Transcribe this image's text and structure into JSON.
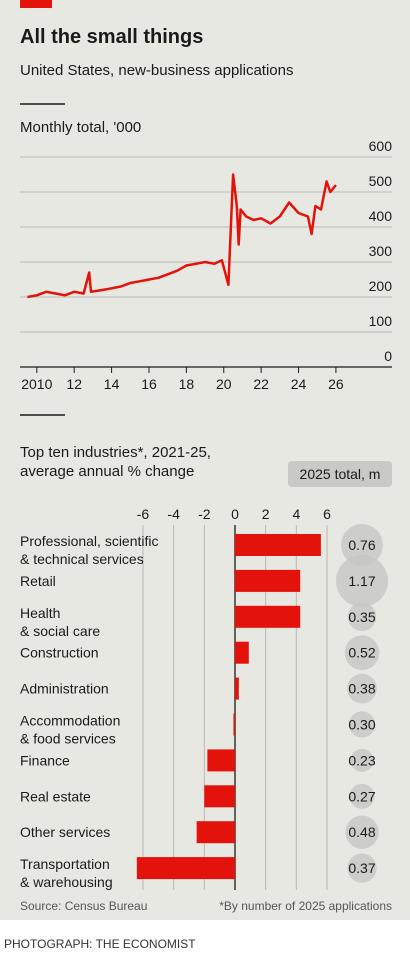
{
  "title": "All the small things",
  "subtitle": "United States, new-business applications",
  "chart_data": [
    {
      "type": "line",
      "title": "Monthly total, '000",
      "color": "#e3120b",
      "x": [
        2009.5,
        2010,
        2010.5,
        2011,
        2011.5,
        2012,
        2012.5,
        2012.8,
        2012.9,
        2013.5,
        2014,
        2014.5,
        2015,
        2015.5,
        2016,
        2016.5,
        2017,
        2017.5,
        2018,
        2018.5,
        2019,
        2019.5,
        2019.9,
        2020.25,
        2020.5,
        2020.7,
        2020.8,
        2020.9,
        2021.2,
        2021.6,
        2022,
        2022.5,
        2023,
        2023.5,
        2024,
        2024.5,
        2024.7,
        2024.9,
        2025.2,
        2025.5,
        2025.7,
        2026
      ],
      "values": [
        200,
        205,
        215,
        210,
        205,
        215,
        210,
        270,
        215,
        220,
        225,
        230,
        240,
        245,
        250,
        255,
        265,
        275,
        290,
        295,
        300,
        295,
        305,
        235,
        550,
        460,
        350,
        450,
        430,
        420,
        425,
        410,
        430,
        470,
        440,
        430,
        380,
        460,
        450,
        530,
        500,
        520
      ],
      "xlim": [
        2009.1,
        2029
      ],
      "xticks": [
        2010,
        {
          "value": 2012,
          "label": "12"
        },
        {
          "value": 2014,
          "label": "14"
        },
        {
          "value": 2016,
          "label": "16"
        },
        {
          "value": 2018,
          "label": "18"
        },
        {
          "value": 2020,
          "label": "20"
        },
        {
          "value": 2022,
          "label": "22"
        },
        {
          "value": 2024,
          "label": "24"
        },
        {
          "value": 2026,
          "label": "26"
        }
      ],
      "ylim": [
        0,
        600
      ],
      "yticks": [
        0,
        100,
        200,
        300,
        400,
        500,
        600
      ],
      "grid": true
    },
    {
      "type": "hbar",
      "title": "Top ten industries*, 2021-25, average annual % change",
      "color": "#e3120b",
      "categories": [
        "Professional, scientific & technical services",
        "Retail",
        "Health & social care",
        "Construction",
        "Administration",
        "Accommodation & food services",
        "Finance",
        "Real estate",
        "Other services",
        "Transportation & warehousing"
      ],
      "values": [
        5.6,
        4.25,
        4.25,
        0.9,
        0.25,
        -0.1,
        -1.8,
        -2.0,
        -2.5,
        -6.4
      ],
      "xlim": [
        -6.5,
        6.5
      ],
      "xticks": [
        -6,
        -4,
        -2,
        0,
        2,
        4,
        6
      ],
      "grid": true,
      "circles": {
        "name": "2025 total, m",
        "color": "#c4c4c0",
        "values": [
          0.76,
          1.17,
          0.35,
          0.52,
          0.38,
          0.3,
          0.23,
          0.27,
          0.48,
          0.37
        ],
        "value_labels": [
          "0.76",
          "1.17",
          "0.35",
          "0.52",
          "0.38",
          "0.30",
          "0.23",
          "0.27",
          "0.48",
          "0.37"
        ]
      }
    }
  ],
  "source": "Source: Census Bureau",
  "footnote": "*By number of 2025 applications",
  "credit": "PHOTOGRAPH: THE ECONOMIST"
}
